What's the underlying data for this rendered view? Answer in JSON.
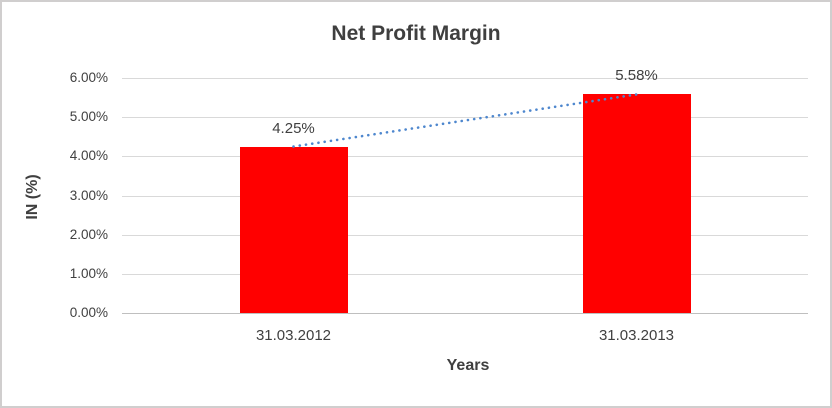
{
  "chart": {
    "background": "#FFFFFF",
    "border_color": "#D0CECE"
  },
  "chart_data": {
    "type": "bar",
    "title": "Net Profit Margin",
    "categories": [
      "31.03.2012",
      "31.03.2013"
    ],
    "values": [
      4.25,
      5.58
    ],
    "data_labels": [
      "4.25%",
      "5.58%"
    ],
    "xlabel": "Years",
    "ylabel": "IN (%)",
    "ylim": [
      0,
      6
    ],
    "yticks": [
      {
        "value": 6,
        "label": "6.00%"
      },
      {
        "value": 5,
        "label": "5.00%"
      },
      {
        "value": 4,
        "label": "4.00%"
      },
      {
        "value": 3,
        "label": "3.00%"
      },
      {
        "value": 2,
        "label": "2.00%"
      },
      {
        "value": 1,
        "label": "1.00%"
      },
      {
        "value": 0,
        "label": "0.00%"
      }
    ],
    "grid": true,
    "legend": "none",
    "bar_color": "#FF0000",
    "gridline_color": "#D9D9D9",
    "axis_line_color": "#BFBFBF",
    "text_color": "#404040",
    "trendline": {
      "type": "linear",
      "style": "dotted",
      "color": "#4E87CE",
      "points": [
        4.25,
        5.58
      ]
    }
  }
}
